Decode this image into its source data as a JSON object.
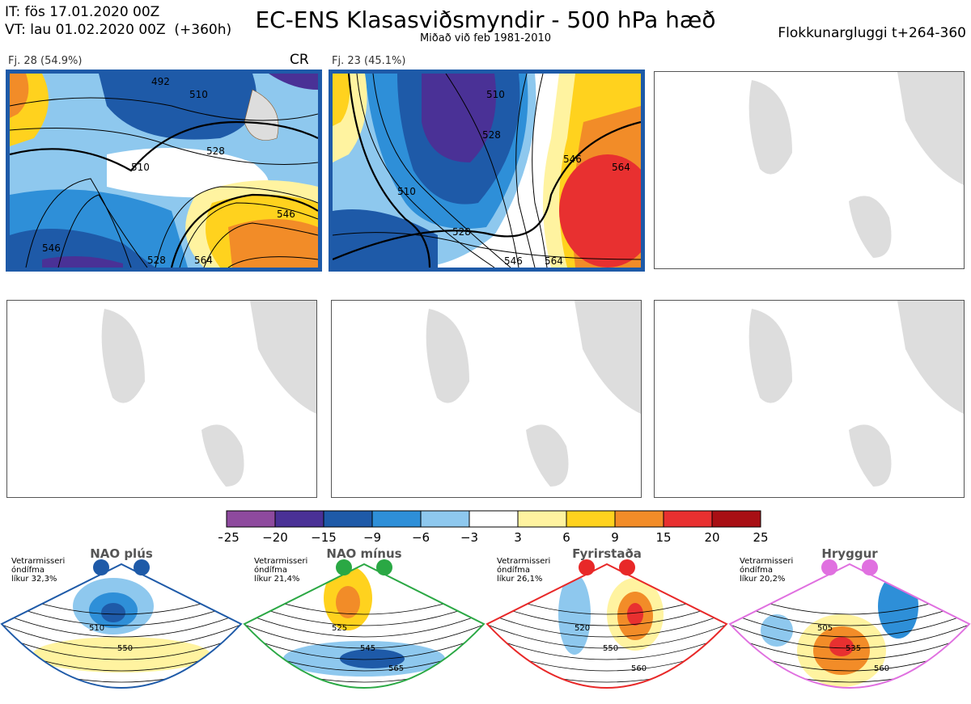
{
  "header": {
    "it_line": "IT: fös 17.01.2020 00Z",
    "vt_line": "VT: lau 01.02.2020 00Z  (+360h)",
    "title": "EC-ENS Klasasviðsmyndir - 500 hPa hæð",
    "subtitle": "Miðað við feb 1981-2010",
    "window": "Flokkunargluggi t+264-360"
  },
  "panels": [
    {
      "label": "Fj. 28 (54.9%)",
      "badge": "CR",
      "contours": [
        "492",
        "510",
        "510",
        "528",
        "546",
        "546",
        "528",
        "564"
      ]
    },
    {
      "label": "Fj. 23 (45.1%)",
      "badge": "",
      "contours": [
        "510",
        "528",
        "510",
        "546",
        "564",
        "528",
        "546",
        "564"
      ]
    }
  ],
  "chart_data": {
    "type": "heatmap",
    "title": "EC-ENS Klasasviðsmyndir - 500 hPa hæð",
    "colorbar": {
      "ticks": [
        "−25",
        "−20",
        "−15",
        "−9",
        "−6",
        "−3",
        "3",
        "6",
        "9",
        "15",
        "20",
        "25"
      ],
      "colors": [
        "#8e4a9e",
        "#4a3196",
        "#1e5aa8",
        "#2e8fd8",
        "#8ec8ee",
        "#ffffff",
        "#fff3a0",
        "#ffd21e",
        "#f28c28",
        "#e83030",
        "#a80f14"
      ]
    },
    "clusters": [
      {
        "name": "Fj. 28",
        "percent": 54.9
      },
      {
        "name": "Fj. 23",
        "percent": 45.1
      }
    ],
    "regimes": [
      {
        "name": "NAO plús",
        "note": [
          "Vetrarmisseri",
          "óndífma",
          "líkur 32,3%"
        ],
        "color": "#1e5aa8",
        "contours": [
          "510",
          "550"
        ]
      },
      {
        "name": "NAO mínus",
        "note": [
          "Vetrarmisseri",
          "óndífma",
          "líkur 21,4%"
        ],
        "color": "#2aa844",
        "contours": [
          "525",
          "545",
          "565"
        ]
      },
      {
        "name": "Fyrirstaða",
        "note": [
          "Vetrarmisseri",
          "óndífma",
          "líkur 26,1%"
        ],
        "color": "#e82828",
        "contours": [
          "520",
          "550",
          "560"
        ]
      },
      {
        "name": "Hryggur",
        "note": [
          "Vetrarmisseri",
          "óndífma",
          "líkur 20,2%"
        ],
        "color": "#e070e0",
        "contours": [
          "505",
          "535",
          "560"
        ]
      }
    ]
  }
}
